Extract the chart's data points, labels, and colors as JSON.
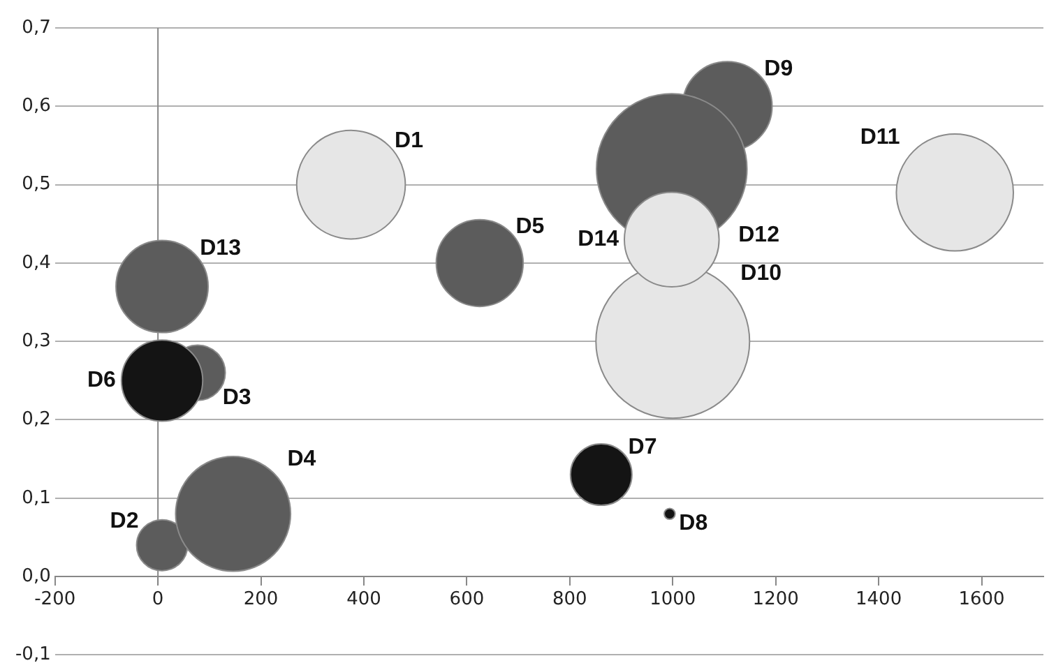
{
  "chart_data": {
    "type": "bubble",
    "xlim": [
      -200,
      1720
    ],
    "xticks": [
      -200,
      0,
      200,
      400,
      600,
      800,
      1000,
      1200,
      1400,
      1600
    ],
    "ylim": [
      -0.1,
      0.7
    ],
    "yticks": [
      {
        "value": -0.1,
        "label": "-0,1"
      },
      {
        "value": 0,
        "label": "0,0"
      },
      {
        "value": 0.1,
        "label": "0,1"
      },
      {
        "value": 0.2,
        "label": "0,2"
      },
      {
        "value": 0.3,
        "label": "0,3"
      },
      {
        "value": 0.4,
        "label": "0,4"
      },
      {
        "value": 0.5,
        "label": "0,5"
      },
      {
        "value": 0.6,
        "label": "0,6"
      },
      {
        "value": 0.7,
        "label": "0,7"
      }
    ],
    "grid": "y",
    "legend": false,
    "series": [
      {
        "name": "D1",
        "color": "#e6e6e6",
        "x": [
          375
        ],
        "values": [
          0.5
        ],
        "sizes": [
          0.5
        ]
      },
      {
        "name": "D2",
        "color": "#5c5c5c",
        "x": [
          8
        ],
        "values": [
          0.04
        ],
        "sizes": [
          0.11
        ]
      },
      {
        "name": "D3",
        "color": "#5c5c5c",
        "x": [
          77
        ],
        "values": [
          0.26
        ],
        "sizes": [
          0.13
        ]
      },
      {
        "name": "D4",
        "color": "#5c5c5c",
        "x": [
          146
        ],
        "values": [
          0.08
        ],
        "sizes": [
          0.56
        ]
      },
      {
        "name": "D5",
        "color": "#5c5c5c",
        "x": [
          625
        ],
        "values": [
          0.4
        ],
        "sizes": [
          0.32
        ]
      },
      {
        "name": "D6",
        "color": "#141414",
        "x": [
          8
        ],
        "values": [
          0.25
        ],
        "sizes": [
          0.28
        ]
      },
      {
        "name": "D7",
        "color": "#141414",
        "x": [
          861
        ],
        "values": [
          0.13
        ],
        "sizes": [
          0.16
        ]
      },
      {
        "name": "D8",
        "color": "#141414",
        "x": [
          994
        ],
        "values": [
          0.08
        ],
        "sizes": [
          0.005
        ]
      },
      {
        "name": "D9",
        "color": "#5c5c5c",
        "x": [
          1106
        ],
        "values": [
          0.6
        ],
        "sizes": [
          0.34
        ]
      },
      {
        "name": "D10",
        "color": "#e6e6e6",
        "x": [
          1000
        ],
        "values": [
          0.3
        ],
        "sizes": [
          1
        ]
      },
      {
        "name": "D11",
        "color": "#e6e6e6",
        "x": [
          1548
        ],
        "values": [
          0.49
        ],
        "sizes": [
          0.58
        ]
      },
      {
        "name": "D12",
        "color": "#5c5c5c",
        "x": [
          998
        ],
        "values": [
          0.52
        ],
        "sizes": [
          0.96
        ]
      },
      {
        "name": "D13",
        "color": "#5c5c5c",
        "x": [
          8
        ],
        "values": [
          0.37
        ],
        "sizes": [
          0.36
        ]
      },
      {
        "name": "D14",
        "color": "#e6e6e6",
        "x": [
          998
        ],
        "values": [
          0.43
        ],
        "sizes": [
          0.38
        ]
      }
    ]
  }
}
